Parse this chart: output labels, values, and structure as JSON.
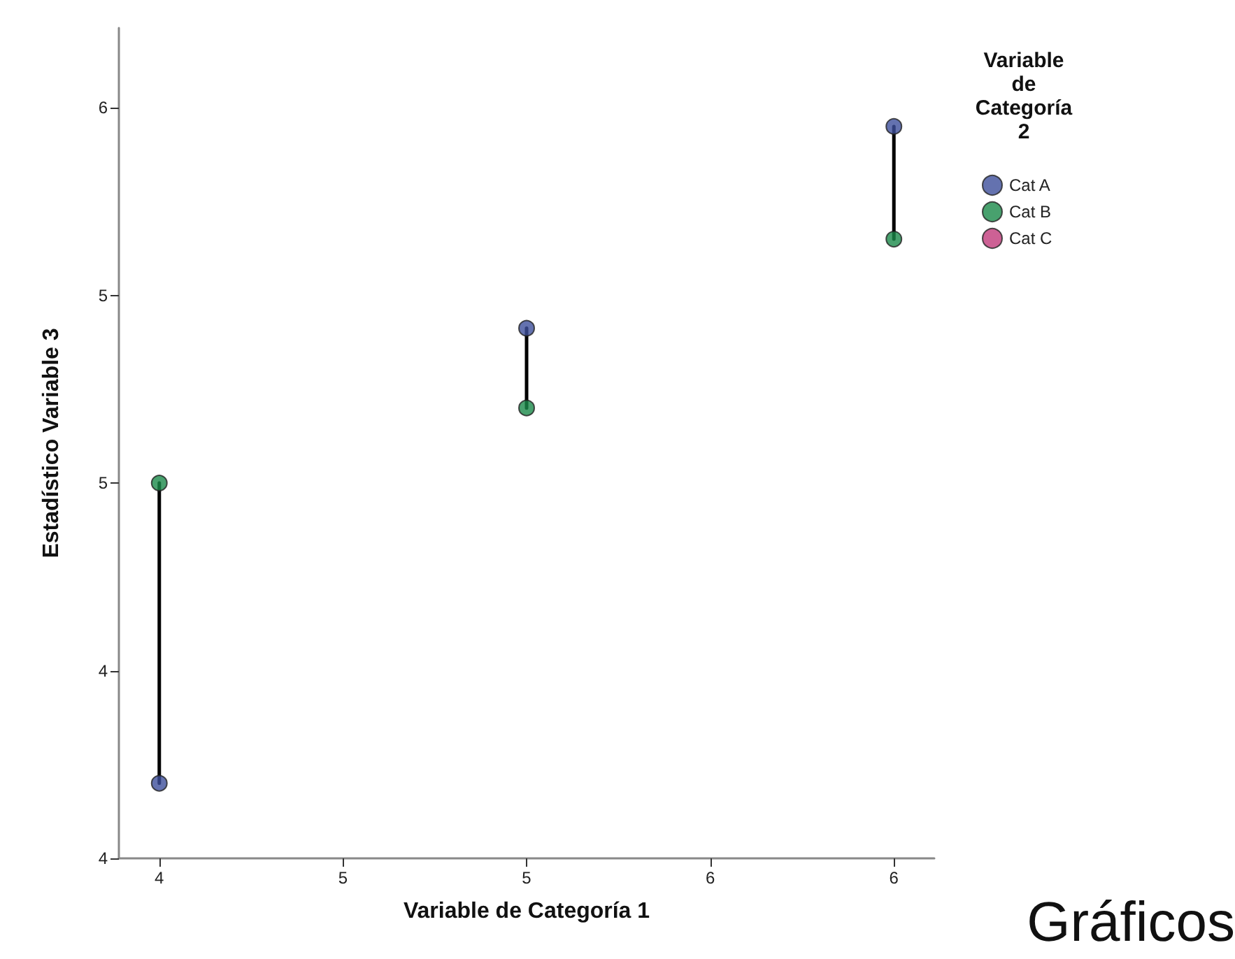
{
  "chart_data": {
    "type": "scatter",
    "xlabel": "Variable de Categoría 1",
    "ylabel": "Estadístico Variable 3",
    "legend_title": "Variable de Categoría 2",
    "annotations": [
      "Gráficos"
    ],
    "series": [
      {
        "name": "Cat A",
        "color": "#3d4f9b",
        "x": [
          4,
          5,
          6
        ],
        "values": [
          4.16,
          5.13,
          5.56
        ]
      },
      {
        "name": "Cat B",
        "color": "#1a8a4a",
        "x": [
          4,
          5,
          6
        ],
        "values": [
          4.8,
          4.96,
          5.32
        ]
      },
      {
        "name": "Cat C",
        "color": "#c0397a"
      },
      {
        "type": "line",
        "color": "#000000",
        "marker": "none",
        "x": [
          4,
          4,
          null,
          5,
          5,
          null,
          6,
          6
        ],
        "values": [
          4.16,
          4.8,
          null,
          5.13,
          4.96,
          null,
          5.56,
          5.32
        ]
      }
    ],
    "xlim": [
      3.89,
      6.11
    ],
    "ylim": [
      4.0,
      5.77
    ],
    "xticks": [
      {
        "value": 4,
        "label": "4"
      },
      {
        "value": 4.5,
        "label": "5"
      },
      {
        "value": 5,
        "label": "5"
      },
      {
        "value": 5.5,
        "label": "6"
      },
      {
        "value": 6,
        "label": "6"
      }
    ],
    "yticks": [
      {
        "value": 4,
        "label": "4"
      },
      {
        "value": 4.4,
        "label": "4"
      },
      {
        "value": 4.8,
        "label": "5"
      },
      {
        "value": 5.2,
        "label": "5"
      },
      {
        "value": 5.6,
        "label": "6"
      }
    ],
    "grid": false,
    "legend": "top right",
    "marker": "circle"
  }
}
